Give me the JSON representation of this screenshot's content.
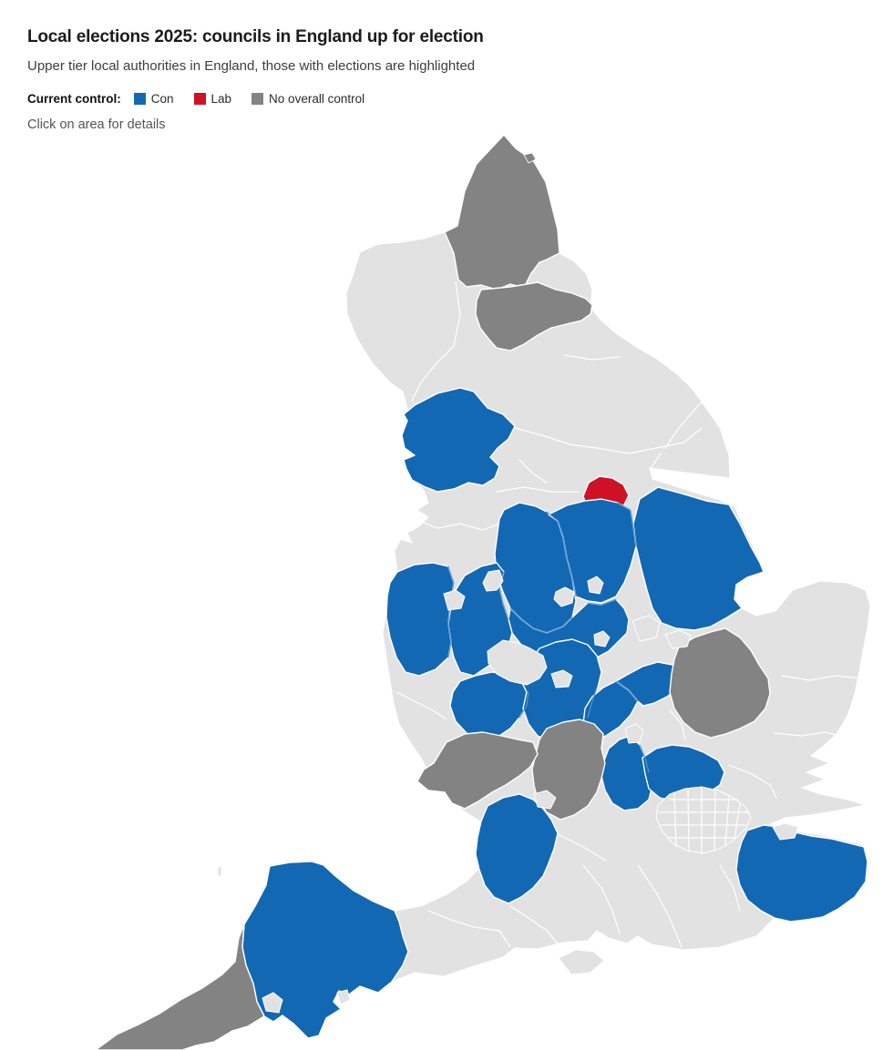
{
  "header": {
    "title": "Local elections 2025: councils in England up for election",
    "subtitle": "Upper tier local authorities in England, those with elections are highlighted",
    "note": "Click on area for details"
  },
  "legend": {
    "label": "Current control:",
    "items": [
      {
        "id": "con",
        "label": "Con",
        "color": "#1268b3"
      },
      {
        "id": "lab",
        "label": "Lab",
        "color": "#cf1126"
      },
      {
        "id": "noc",
        "label": "No overall control",
        "color": "#838383"
      }
    ]
  },
  "map": {
    "base_color": "#e2e2e2",
    "border_color": "#ffffff",
    "sea_color": "#ffffff",
    "regions": [
      {
        "id": "northumberland",
        "name": "Northumberland",
        "control": "noc"
      },
      {
        "id": "county-durham",
        "name": "County Durham",
        "control": "noc"
      },
      {
        "id": "lancashire",
        "name": "Lancashire",
        "control": "con"
      },
      {
        "id": "doncaster",
        "name": "Doncaster",
        "control": "lab"
      },
      {
        "id": "lincolnshire",
        "name": "Lincolnshire",
        "control": "con"
      },
      {
        "id": "derbyshire",
        "name": "Derbyshire",
        "control": "con"
      },
      {
        "id": "nottinghamshire",
        "name": "Nottinghamshire",
        "control": "con"
      },
      {
        "id": "leicestershire",
        "name": "Leicestershire",
        "control": "con"
      },
      {
        "id": "staffordshire",
        "name": "Staffordshire",
        "control": "con"
      },
      {
        "id": "shropshire",
        "name": "Shropshire",
        "control": "con"
      },
      {
        "id": "worcestershire",
        "name": "Worcestershire",
        "control": "con"
      },
      {
        "id": "warwickshire",
        "name": "Warwickshire",
        "control": "con"
      },
      {
        "id": "west-northamptonshire",
        "name": "West Northamptonshire",
        "control": "con"
      },
      {
        "id": "north-northamptonshire",
        "name": "North Northamptonshire",
        "control": "con"
      },
      {
        "id": "cambridgeshire",
        "name": "Cambridgeshire",
        "control": "noc"
      },
      {
        "id": "buckinghamshire",
        "name": "Buckinghamshire",
        "control": "con"
      },
      {
        "id": "hertfordshire",
        "name": "Hertfordshire",
        "control": "con"
      },
      {
        "id": "oxfordshire",
        "name": "Oxfordshire",
        "control": "noc"
      },
      {
        "id": "gloucestershire",
        "name": "Gloucestershire",
        "control": "noc"
      },
      {
        "id": "wiltshire",
        "name": "Wiltshire",
        "control": "con"
      },
      {
        "id": "devon",
        "name": "Devon",
        "control": "con"
      },
      {
        "id": "cornwall",
        "name": "Cornwall",
        "control": "noc"
      },
      {
        "id": "kent",
        "name": "Kent",
        "control": "con"
      }
    ]
  }
}
